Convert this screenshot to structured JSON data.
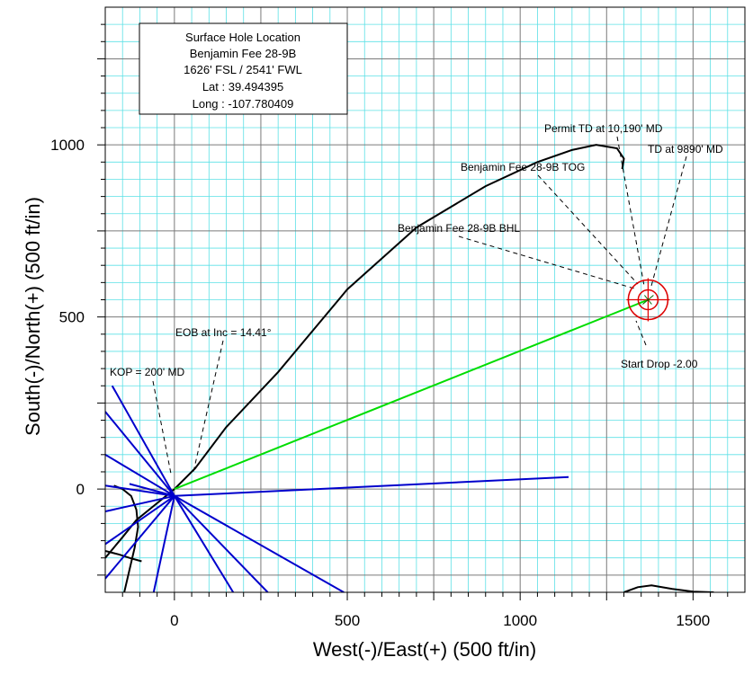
{
  "chart_data": {
    "type": "line",
    "xlabel": "West(-)/East(+) (500 ft/in)",
    "ylabel": "South(-)/North(+) (500 ft/in)",
    "xlim": [
      -200,
      1650
    ],
    "ylim": [
      -300,
      1400
    ],
    "x_ticks": [
      0,
      500,
      1000,
      1500
    ],
    "y_ticks": [
      0,
      500,
      1000
    ],
    "grid": true,
    "colors": {
      "major_grid": "#7a7a7a",
      "minor_grid": "#5ce0e6",
      "wellpath": "#00dd00",
      "target": "#dd0000",
      "offset_wells": "#0000cc",
      "contour": "#000000"
    },
    "series": [
      {
        "color": "#00dd00",
        "x": [
          0,
          1370
        ],
        "y": [
          0,
          550
        ]
      }
    ],
    "offset_wells": [
      {
        "x": [
          0,
          1140
        ],
        "y": [
          -20,
          35
        ]
      },
      {
        "x": [
          0,
          -180
        ],
        "y": [
          -20,
          300
        ]
      },
      {
        "x": [
          0,
          -200
        ],
        "y": [
          -20,
          225
        ]
      },
      {
        "x": [
          0,
          -200
        ],
        "y": [
          -20,
          100
        ]
      },
      {
        "x": [
          0,
          -200
        ],
        "y": [
          -20,
          10
        ]
      },
      {
        "x": [
          0,
          -200
        ],
        "y": [
          -20,
          -65
        ]
      },
      {
        "x": [
          0,
          -200
        ],
        "y": [
          -20,
          -160
        ]
      },
      {
        "x": [
          0,
          -200
        ],
        "y": [
          -20,
          -260
        ]
      },
      {
        "x": [
          0,
          -130
        ],
        "y": [
          -20,
          15
        ]
      },
      {
        "x": [
          0,
          -60
        ],
        "y": [
          -20,
          -300
        ]
      },
      {
        "x": [
          0,
          170
        ],
        "y": [
          -20,
          -300
        ]
      },
      {
        "x": [
          0,
          270
        ],
        "y": [
          -20,
          -300
        ]
      },
      {
        "x": [
          0,
          490
        ],
        "y": [
          -20,
          -300
        ]
      }
    ],
    "contours": [
      {
        "x": [
          -200,
          -150,
          -110,
          0,
          60,
          150,
          300,
          500,
          700,
          900,
          1050,
          1150,
          1220,
          1280,
          1300,
          1295
        ],
        "y": [
          -200,
          -140,
          -90,
          0,
          60,
          180,
          340,
          580,
          760,
          880,
          950,
          985,
          1000,
          990,
          960,
          930
        ]
      },
      {
        "x": [
          -145,
          -115,
          -105,
          -110,
          -125,
          -150,
          -175
        ],
        "y": [
          -300,
          -170,
          -110,
          -60,
          -20,
          0,
          10
        ]
      },
      {
        "x": [
          -95,
          -130,
          -160,
          -200
        ],
        "y": [
          -210,
          -200,
          -190,
          -180
        ]
      },
      {
        "x": [
          1300,
          1340,
          1380,
          1440,
          1500,
          1560
        ],
        "y": [
          -300,
          -285,
          -280,
          -290,
          -298,
          -300
        ]
      }
    ],
    "target": {
      "x": 1370,
      "y": 550
    },
    "surface_box": [
      "Surface Hole Location",
      "Benjamin Fee 28-9B",
      "1626' FSL / 2541' FWL",
      "Lat : 39.494395",
      "Long : -107.780409"
    ],
    "annotations": {
      "permit_td": "Permit TD at 10,190' MD",
      "td": "TD at 9890' MD",
      "tog": "Benjamin Fee 28-9B TOG",
      "bhl": "Benjamin Fee 28-9B BHL",
      "start_drop": "Start Drop -2.00",
      "eob": "EOB at Inc = 14.41°",
      "kop": "KOP = 200' MD"
    }
  }
}
